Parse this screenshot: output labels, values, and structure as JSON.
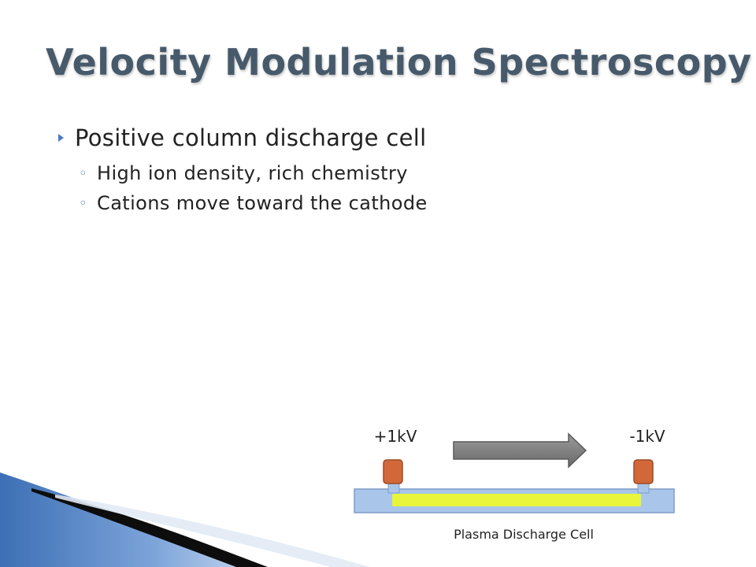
{
  "slide": {
    "title": "Velocity Modulation Spectroscopy",
    "bullet": "Positive column discharge cell",
    "sub_bullets": [
      "High ion density, rich chemistry",
      "Cations move toward the cathode"
    ]
  },
  "diagram": {
    "anode_label": "+1kV",
    "cathode_label": "-1kV",
    "caption": "Plasma Discharge Cell",
    "colors": {
      "tube": "#a9c6ea",
      "plasma": "#e8f53a",
      "electrode": "#d2683a",
      "arrow": "#7f7f7f",
      "title": "#475a6b",
      "bullet_accent": "#4a7cc4"
    }
  }
}
